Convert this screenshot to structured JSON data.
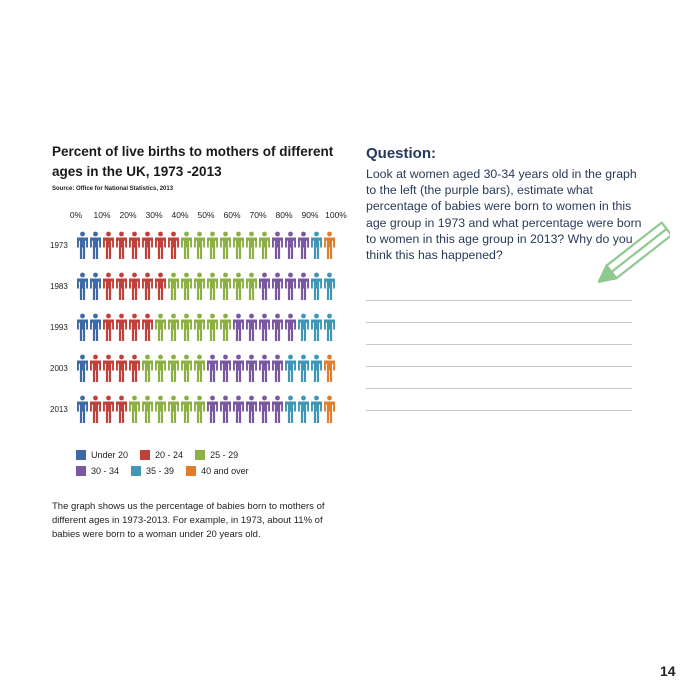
{
  "chart_data": {
    "type": "pictogram-stacked-bar",
    "title": "Percent of live births to mothers of different ages in the UK, 1973 -2013",
    "source": "Source: Office for National Statistics, 2013",
    "x_ticks": [
      "0%",
      "10%",
      "20%",
      "30%",
      "40%",
      "50%",
      "60%",
      "70%",
      "80%",
      "90%",
      "100%"
    ],
    "xlim": [
      0,
      100
    ],
    "categories": [
      "1973",
      "1983",
      "1993",
      "2003",
      "2013"
    ],
    "series": [
      {
        "name": "Under 20",
        "color": "#3d6aa6",
        "values": [
          11,
          9,
          8,
          7,
          5
        ]
      },
      {
        "name": "20 - 24",
        "color": "#c0413b",
        "values": [
          28,
          27,
          20,
          17,
          15
        ]
      },
      {
        "name": "25 - 29",
        "color": "#8cb043",
        "values": [
          36,
          33,
          32,
          26,
          29
        ]
      },
      {
        "name": "30 - 34",
        "color": "#7a58a0",
        "values": [
          16,
          21,
          27,
          30,
          30
        ]
      },
      {
        "name": "35 - 39",
        "color": "#3f97b5",
        "values": [
          6,
          8,
          11,
          16,
          17
        ]
      },
      {
        "name": "40 and over",
        "color": "#e07e2c",
        "values": [
          3,
          2,
          2,
          4,
          4
        ]
      }
    ]
  },
  "question": {
    "heading": "Question:",
    "body": "Look at women aged 30-34 years old in the graph to the left (the purple bars), estimate what percentage of babies were born to women in this age group in 1973 and what percentage were born to women in this age group in 2013? Why do you think this has happened?"
  },
  "description": "The graph shows us the percentage of babies born to mothers of different ages in 1973-2013. For example, in 1973, about 11% of babies were born to a woman under 20 years old.",
  "page_number": "14",
  "colors": {
    "heading": "#233a5e",
    "pencil": "#8fc98f",
    "rule": "#c8c8c8"
  }
}
